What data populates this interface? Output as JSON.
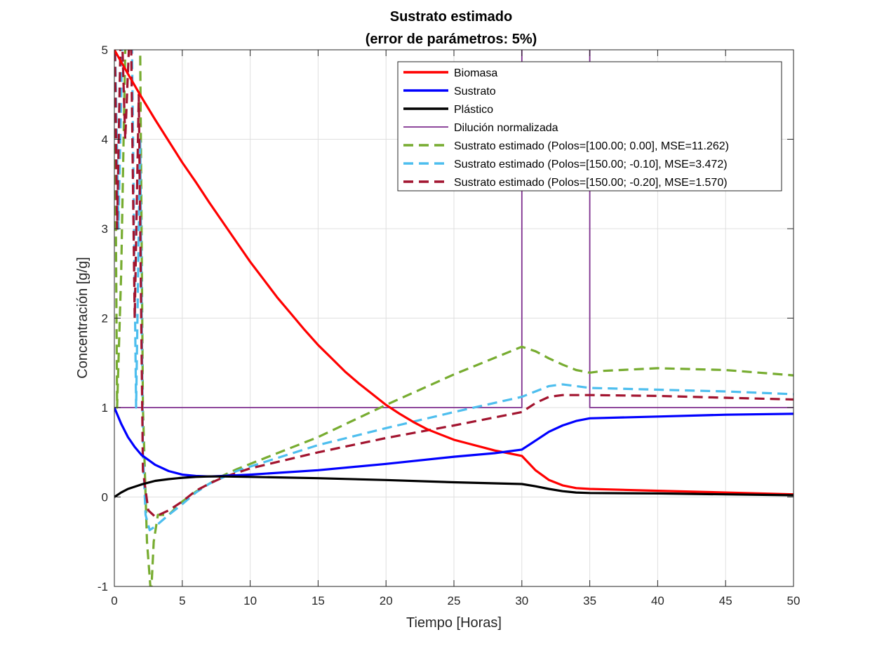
{
  "chart_data": {
    "type": "line",
    "title": "Sustrato estimado",
    "subtitle": "(error de parámetros: 5%)",
    "xlabel": "Tiempo [Horas]",
    "ylabel": "Concentración [g/g]",
    "xlim": [
      0,
      50
    ],
    "ylim": [
      -1,
      5
    ],
    "xticks": [
      0,
      5,
      10,
      15,
      20,
      25,
      30,
      35,
      40,
      45,
      50
    ],
    "yticks": [
      -1,
      0,
      1,
      2,
      3,
      4,
      5
    ],
    "grid": true,
    "legend_position": "top-right",
    "series": [
      {
        "name": "Biomasa",
        "color": "#ff0000",
        "style": "solid",
        "points": [
          [
            0,
            5
          ],
          [
            1,
            4.73
          ],
          [
            2,
            4.47
          ],
          [
            3,
            4.22
          ],
          [
            4,
            3.98
          ],
          [
            5,
            3.74
          ],
          [
            6,
            3.52
          ],
          [
            7,
            3.29
          ],
          [
            8,
            3.07
          ],
          [
            9,
            2.85
          ],
          [
            10,
            2.63
          ],
          [
            11,
            2.43
          ],
          [
            12,
            2.23
          ],
          [
            13,
            2.05
          ],
          [
            14,
            1.87
          ],
          [
            15,
            1.7
          ],
          [
            16,
            1.55
          ],
          [
            17,
            1.4
          ],
          [
            18,
            1.27
          ],
          [
            19,
            1.15
          ],
          [
            20,
            1.03
          ],
          [
            21,
            0.93
          ],
          [
            22,
            0.84
          ],
          [
            23,
            0.76
          ],
          [
            24,
            0.7
          ],
          [
            25,
            0.64
          ],
          [
            26,
            0.6
          ],
          [
            27,
            0.56
          ],
          [
            28,
            0.52
          ],
          [
            29,
            0.49
          ],
          [
            30,
            0.46
          ],
          [
            31,
            0.3
          ],
          [
            32,
            0.19
          ],
          [
            33,
            0.13
          ],
          [
            34,
            0.1
          ],
          [
            35,
            0.09
          ],
          [
            40,
            0.07
          ],
          [
            45,
            0.05
          ],
          [
            50,
            0.03
          ]
        ]
      },
      {
        "name": "Sustrato",
        "color": "#0000ff",
        "style": "solid",
        "points": [
          [
            0,
            1
          ],
          [
            0.5,
            0.82
          ],
          [
            1,
            0.67
          ],
          [
            1.5,
            0.56
          ],
          [
            2,
            0.47
          ],
          [
            3,
            0.36
          ],
          [
            4,
            0.29
          ],
          [
            5,
            0.25
          ],
          [
            6,
            0.235
          ],
          [
            7,
            0.23
          ],
          [
            8,
            0.235
          ],
          [
            10,
            0.25
          ],
          [
            15,
            0.3
          ],
          [
            20,
            0.37
          ],
          [
            25,
            0.45
          ],
          [
            28,
            0.49
          ],
          [
            30,
            0.53
          ],
          [
            31,
            0.63
          ],
          [
            32,
            0.73
          ],
          [
            33,
            0.8
          ],
          [
            34,
            0.85
          ],
          [
            35,
            0.88
          ],
          [
            40,
            0.9
          ],
          [
            45,
            0.92
          ],
          [
            50,
            0.93
          ]
        ]
      },
      {
        "name": "Plástico",
        "color": "#000000",
        "style": "solid",
        "points": [
          [
            0,
            0
          ],
          [
            0.5,
            0.05
          ],
          [
            1,
            0.09
          ],
          [
            2,
            0.14
          ],
          [
            3,
            0.18
          ],
          [
            4,
            0.2
          ],
          [
            5,
            0.215
          ],
          [
            6,
            0.225
          ],
          [
            7,
            0.23
          ],
          [
            8,
            0.23
          ],
          [
            10,
            0.225
          ],
          [
            15,
            0.21
          ],
          [
            20,
            0.19
          ],
          [
            25,
            0.165
          ],
          [
            30,
            0.145
          ],
          [
            31,
            0.12
          ],
          [
            32,
            0.09
          ],
          [
            33,
            0.065
          ],
          [
            34,
            0.05
          ],
          [
            35,
            0.045
          ],
          [
            40,
            0.04
          ],
          [
            45,
            0.03
          ],
          [
            50,
            0.02
          ]
        ]
      },
      {
        "name": "Dilución normalizada",
        "color": "#7e2f8e",
        "style": "solid",
        "points": [
          [
            0,
            1
          ],
          [
            30,
            1
          ],
          [
            30,
            5.5
          ],
          [
            35,
            5.5
          ],
          [
            35,
            1
          ],
          [
            50,
            1
          ]
        ]
      },
      {
        "name": "Sustrato estimado (Polos=[100.00; 0.00], MSE=11.262)",
        "color": "#77ac30",
        "style": "dashed",
        "points": [
          [
            0,
            5.5
          ],
          [
            0.2,
            1
          ],
          [
            0.5,
            2.5
          ],
          [
            0.8,
            5
          ],
          [
            1.0,
            5.8
          ],
          [
            1.5,
            5.5
          ],
          [
            1.9,
            5
          ],
          [
            2.1,
            1
          ],
          [
            2.4,
            -0.5
          ],
          [
            2.7,
            -1.1
          ],
          [
            2.9,
            -0.5
          ],
          [
            3.2,
            -0.2
          ],
          [
            4,
            -0.2
          ],
          [
            5,
            -0.05
          ],
          [
            6,
            0.06
          ],
          [
            7,
            0.15
          ],
          [
            8,
            0.24
          ],
          [
            9,
            0.31
          ],
          [
            10,
            0.37
          ],
          [
            15,
            0.67
          ],
          [
            20,
            1.03
          ],
          [
            25,
            1.37
          ],
          [
            30,
            1.68
          ],
          [
            31,
            1.63
          ],
          [
            32,
            1.55
          ],
          [
            33,
            1.48
          ],
          [
            34,
            1.42
          ],
          [
            35,
            1.39
          ],
          [
            36,
            1.41
          ],
          [
            40,
            1.44
          ],
          [
            45,
            1.42
          ],
          [
            50,
            1.36
          ]
        ]
      },
      {
        "name": "Sustrato estimado (Polos=[150.00; -0.10], MSE=3.472)",
        "color": "#4dbeee",
        "style": "dashed",
        "points": [
          [
            0,
            5.5
          ],
          [
            0.3,
            3
          ],
          [
            0.6,
            5.2
          ],
          [
            1.0,
            5.8
          ],
          [
            1.3,
            5
          ],
          [
            1.6,
            1
          ],
          [
            1.9,
            4
          ],
          [
            2.1,
            0.5
          ],
          [
            2.3,
            -0.2
          ],
          [
            2.6,
            -0.37
          ],
          [
            3,
            -0.33
          ],
          [
            4,
            -0.2
          ],
          [
            5,
            -0.08
          ],
          [
            6,
            0.05
          ],
          [
            7,
            0.15
          ],
          [
            8,
            0.22
          ],
          [
            9,
            0.29
          ],
          [
            10,
            0.34
          ],
          [
            15,
            0.58
          ],
          [
            20,
            0.77
          ],
          [
            25,
            0.95
          ],
          [
            30,
            1.12
          ],
          [
            31,
            1.18
          ],
          [
            32,
            1.24
          ],
          [
            33,
            1.26
          ],
          [
            34,
            1.24
          ],
          [
            35,
            1.22
          ],
          [
            40,
            1.2
          ],
          [
            45,
            1.18
          ],
          [
            50,
            1.15
          ]
        ]
      },
      {
        "name": "Sustrato estimado (Polos=[150.00; -0.20], MSE=1.570)",
        "color": "#a2142f",
        "style": "dashed",
        "points": [
          [
            0,
            5.5
          ],
          [
            0.2,
            3
          ],
          [
            0.5,
            5.5
          ],
          [
            0.8,
            4
          ],
          [
            1.2,
            5.5
          ],
          [
            1.5,
            2
          ],
          [
            1.8,
            4.5
          ],
          [
            2.1,
            0.3
          ],
          [
            2.5,
            -0.15
          ],
          [
            3,
            -0.22
          ],
          [
            4,
            -0.15
          ],
          [
            5,
            -0.05
          ],
          [
            6,
            0.07
          ],
          [
            7,
            0.15
          ],
          [
            8,
            0.22
          ],
          [
            9,
            0.27
          ],
          [
            10,
            0.32
          ],
          [
            15,
            0.5
          ],
          [
            20,
            0.66
          ],
          [
            25,
            0.8
          ],
          [
            30,
            0.95
          ],
          [
            31,
            1.05
          ],
          [
            32,
            1.12
          ],
          [
            33,
            1.14
          ],
          [
            35,
            1.14
          ],
          [
            40,
            1.13
          ],
          [
            45,
            1.11
          ],
          [
            50,
            1.09
          ]
        ]
      }
    ]
  }
}
